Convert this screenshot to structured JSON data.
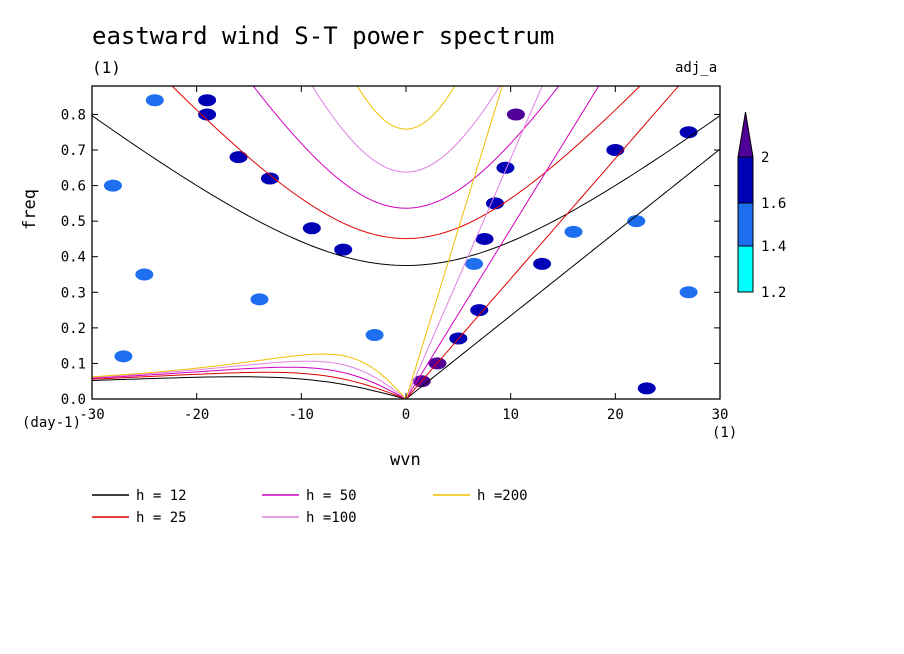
{
  "chart_data": {
    "type": "heatmap",
    "title": "eastward wind S-T power spectrum",
    "subtitle": "(1)",
    "corner_label": "adj_a",
    "xlabel": "wvn",
    "ylabel": "freq",
    "y_unit": "(day-1)",
    "x_unit": "(1)",
    "xlim": [
      -30,
      30
    ],
    "ylim": [
      0,
      0.88
    ],
    "x_ticks": [
      -30,
      -20,
      -10,
      0,
      10,
      20,
      30
    ],
    "x_tick_labels": [
      "-30",
      "-20",
      "-10",
      "0",
      "10",
      "20",
      "30"
    ],
    "y_ticks": [
      0,
      0.1,
      0.2,
      0.3,
      0.4,
      0.5,
      0.6,
      0.7,
      0.8
    ],
    "y_tick_labels": [
      "0.0",
      "0.1",
      "0.2",
      "0.3",
      "0.4",
      "0.5",
      "0.6",
      "0.7",
      "0.8"
    ],
    "colorbar": {
      "levels": [
        1.2,
        1.4,
        1.6,
        2
      ],
      "labels": [
        "1.2",
        "1.4",
        "1.6",
        "2"
      ],
      "colors": [
        "#00ffff",
        "#1e6ef0",
        "#0000b4",
        "#500096"
      ]
    },
    "shaded_regions": [
      {
        "x": 10.5,
        "y": 0.8,
        "level": 2
      },
      {
        "x": 9.5,
        "y": 0.65,
        "level": 1.6
      },
      {
        "x": 8.5,
        "y": 0.55,
        "level": 1.6
      },
      {
        "x": 7.5,
        "y": 0.45,
        "level": 1.6
      },
      {
        "x": 6.5,
        "y": 0.38,
        "level": 1.4
      },
      {
        "x": 7.0,
        "y": 0.25,
        "level": 1.6
      },
      {
        "x": 5.0,
        "y": 0.17,
        "level": 1.6
      },
      {
        "x": 3.0,
        "y": 0.1,
        "level": 2
      },
      {
        "x": 1.5,
        "y": 0.05,
        "level": 2
      },
      {
        "x": 13.0,
        "y": 0.38,
        "level": 1.6
      },
      {
        "x": 16.0,
        "y": 0.47,
        "level": 1.4
      },
      {
        "x": 22.0,
        "y": 0.5,
        "level": 1.4
      },
      {
        "x": 27.0,
        "y": 0.75,
        "level": 1.6
      },
      {
        "x": 20.0,
        "y": 0.7,
        "level": 1.6
      },
      {
        "x": -6.0,
        "y": 0.42,
        "level": 1.6
      },
      {
        "x": -9.0,
        "y": 0.48,
        "level": 1.6
      },
      {
        "x": -13.0,
        "y": 0.62,
        "level": 1.6
      },
      {
        "x": -16.0,
        "y": 0.68,
        "level": 1.6
      },
      {
        "x": -19.0,
        "y": 0.8,
        "level": 1.6
      },
      {
        "x": -24.0,
        "y": 0.84,
        "level": 1.4
      },
      {
        "x": -19.0,
        "y": 0.84,
        "level": 1.6
      },
      {
        "x": -3.0,
        "y": 0.18,
        "level": 1.4
      },
      {
        "x": -25.0,
        "y": 0.35,
        "level": 1.4
      },
      {
        "x": -27.0,
        "y": 0.12,
        "level": 1.4
      },
      {
        "x": -14.0,
        "y": 0.28,
        "level": 1.4
      },
      {
        "x": 23.0,
        "y": 0.03,
        "level": 1.6
      },
      {
        "x": 27.0,
        "y": 0.3,
        "level": 1.4
      },
      {
        "x": -28.0,
        "y": 0.6,
        "level": 1.4
      }
    ],
    "legend": [
      {
        "label": "h = 12",
        "color": "#000000"
      },
      {
        "label": "h = 25",
        "color": "#e00000"
      },
      {
        "label": "h = 50",
        "color": "#d000c0"
      },
      {
        "label": "h =100",
        "color": "#e080e0"
      },
      {
        "label": "h =200",
        "color": "#f0c000"
      }
    ],
    "series_h": [
      12,
      25,
      50,
      100,
      200
    ]
  }
}
